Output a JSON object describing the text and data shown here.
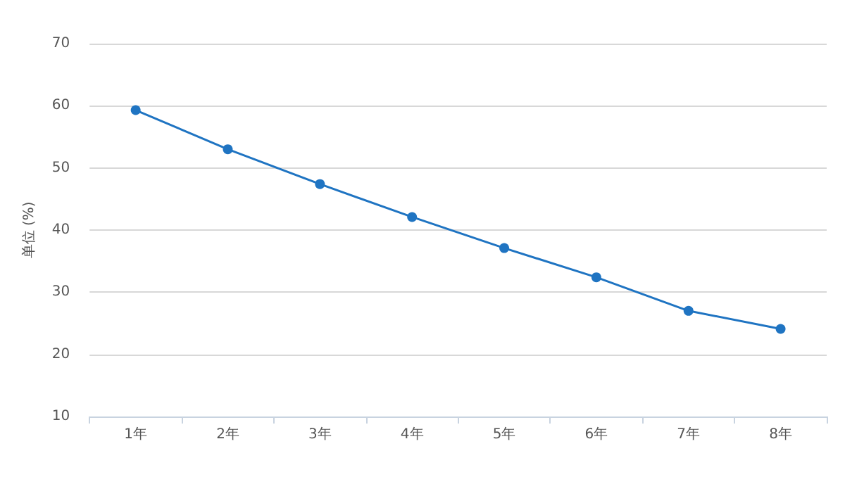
{
  "chart_data": {
    "type": "line",
    "ylabel": "单位 (%)",
    "categories": [
      "1年",
      "2年",
      "3年",
      "4年",
      "5年",
      "6年",
      "7年",
      "8年"
    ],
    "series": [
      {
        "color": "#1f74c2",
        "values": [
          59.3,
          53.0,
          47.4,
          42.1,
          37.1,
          32.4,
          27.0,
          24.1
        ]
      }
    ],
    "ylim": [
      10,
      70
    ],
    "yticks": [
      10,
      20,
      30,
      40,
      50,
      60,
      70
    ],
    "grid": "y",
    "marker": "circle",
    "line_style": "solid"
  }
}
